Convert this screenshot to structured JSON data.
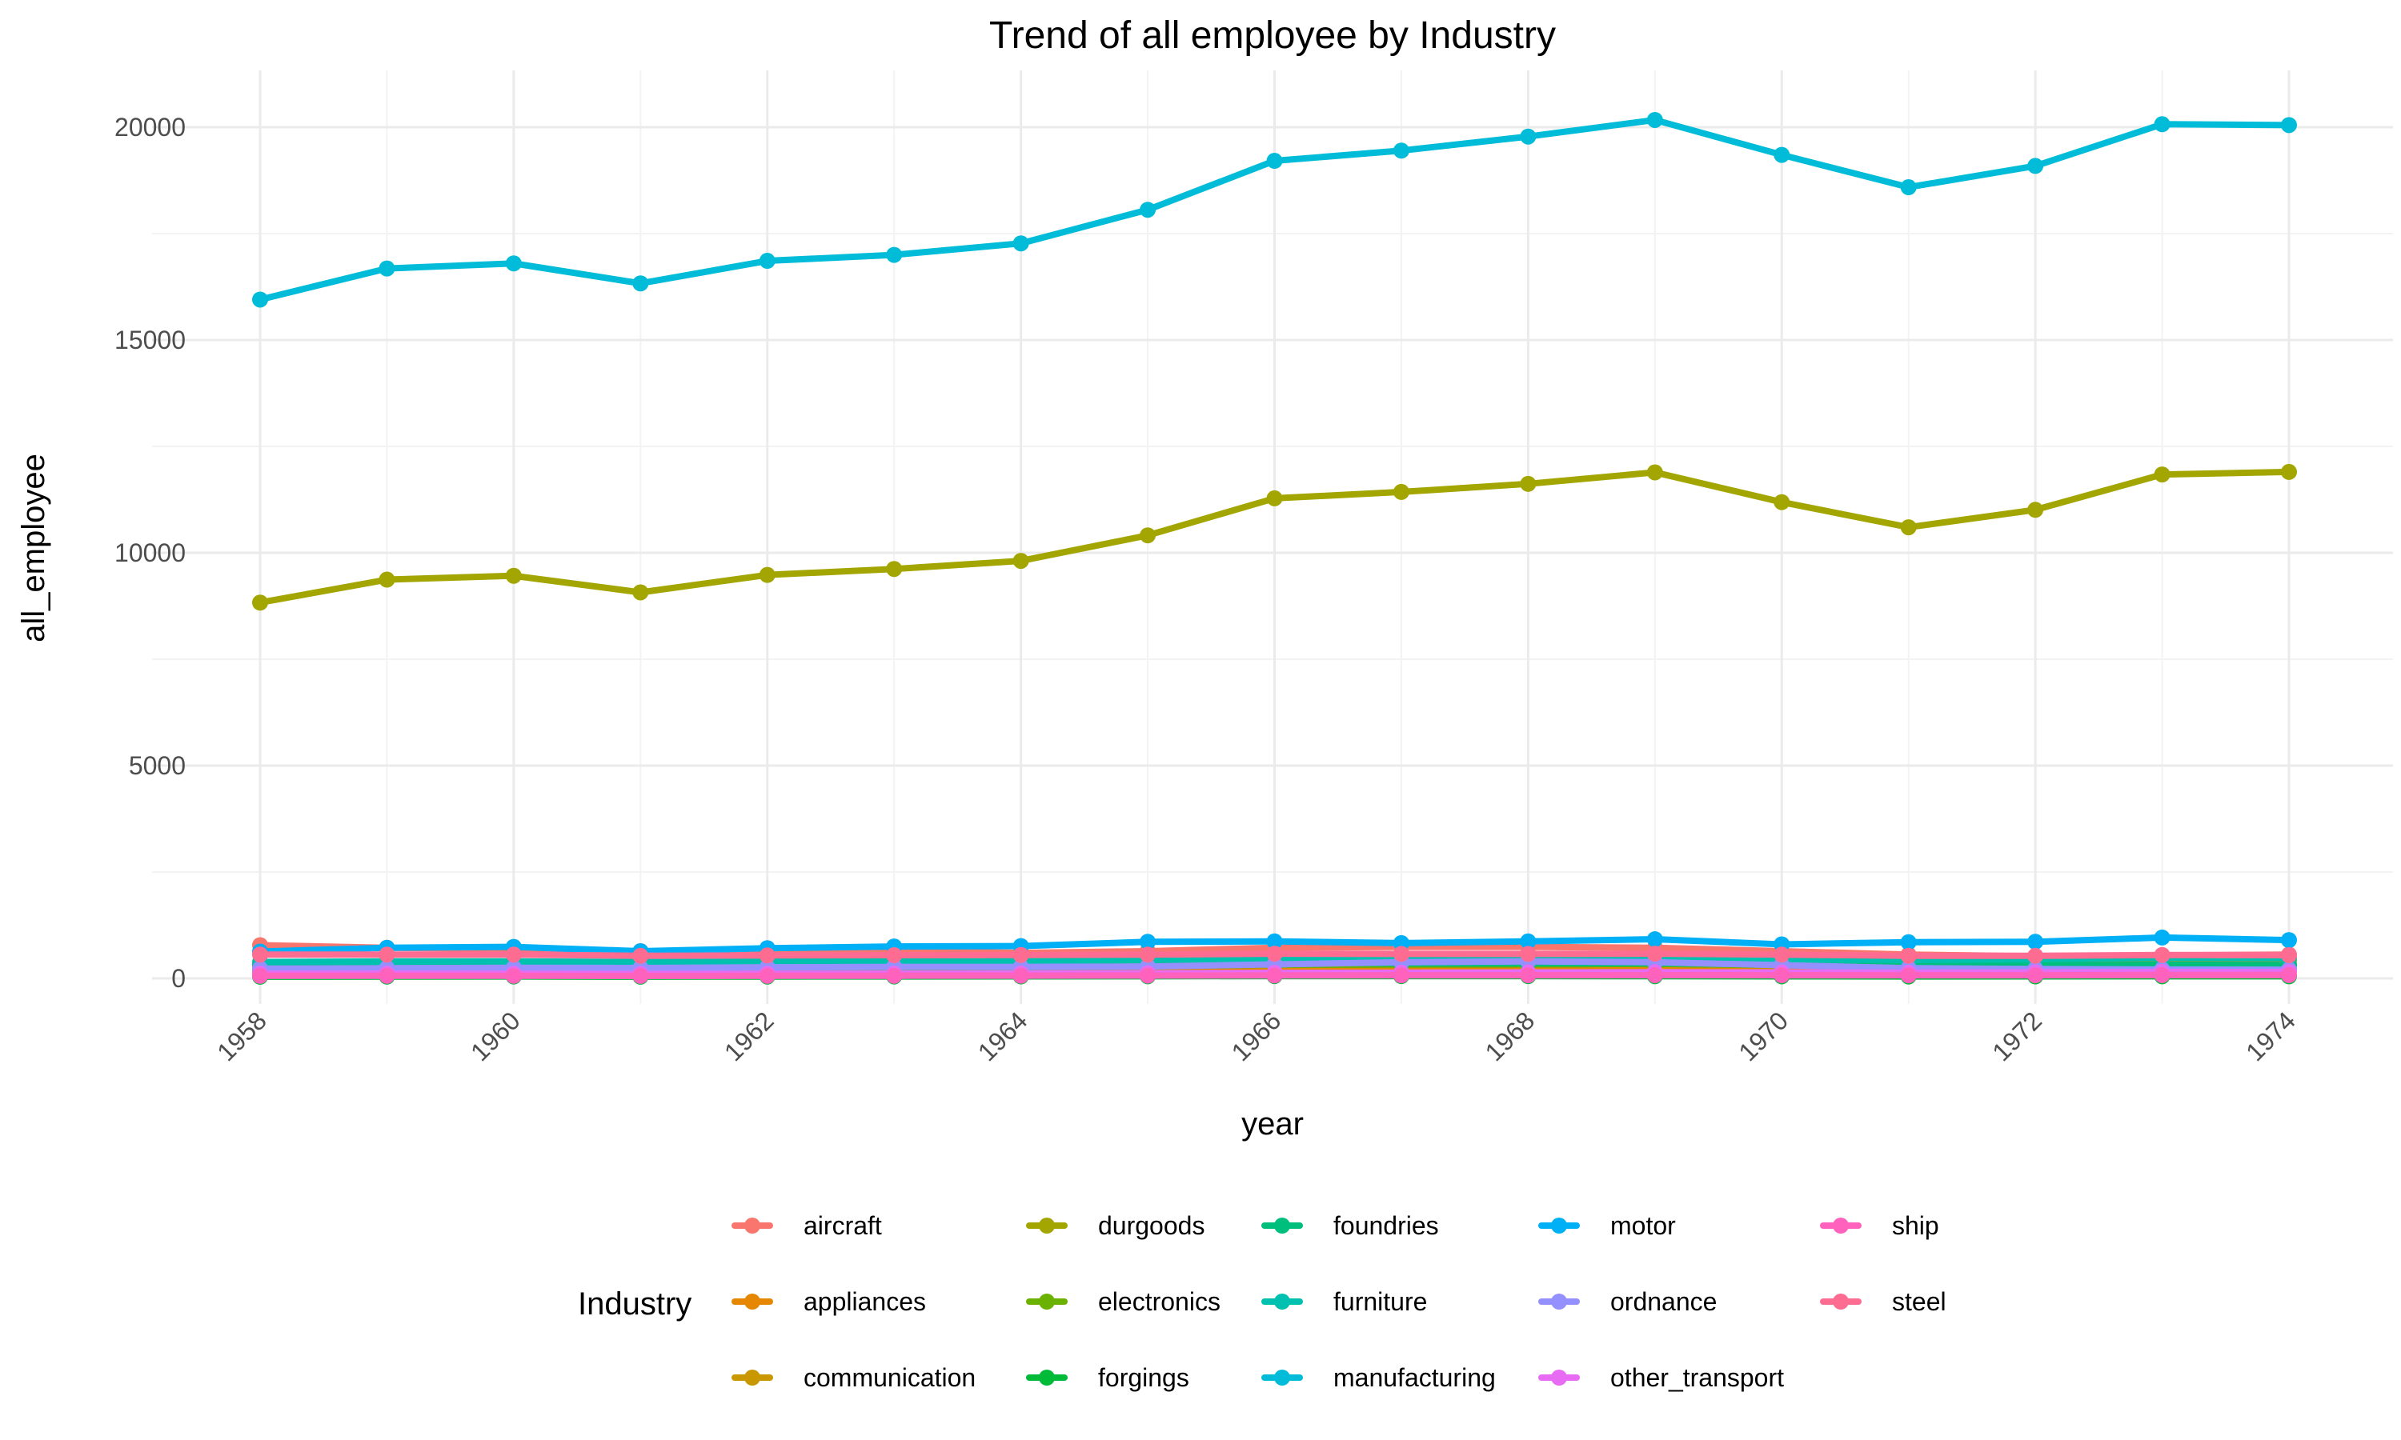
{
  "chart_data": {
    "type": "line",
    "title": "Trend of all employee by Industry",
    "xlabel": "year",
    "ylabel": "all_employee",
    "x": [
      1958,
      1959,
      1960,
      1961,
      1962,
      1963,
      1964,
      1965,
      1966,
      1967,
      1968,
      1969,
      1970,
      1971,
      1972,
      1973,
      1974
    ],
    "xlim": [
      1958,
      1974
    ],
    "ylim": [
      -400,
      21000
    ],
    "x_ticks": [
      "1958",
      "1960",
      "1962",
      "1964",
      "1966",
      "1968",
      "1970",
      "1972",
      "1974"
    ],
    "y_ticks": [
      "0",
      "5000",
      "10000",
      "15000",
      "20000"
    ],
    "grid": true,
    "legend_title": "Industry",
    "legend_position": "bottom",
    "series": [
      {
        "name": "aircraft",
        "color": "#F8766D",
        "values": [
          780,
          720,
          690,
          640,
          650,
          640,
          600,
          640,
          720,
          740,
          740,
          720,
          640,
          560,
          520,
          540,
          560
        ]
      },
      {
        "name": "appliances",
        "color": "#E58700",
        "values": [
          170,
          175,
          180,
          175,
          185,
          190,
          200,
          210,
          220,
          225,
          230,
          235,
          225,
          220,
          230,
          240,
          235
        ]
      },
      {
        "name": "communication",
        "color": "#C99800",
        "values": [
          290,
          300,
          310,
          300,
          315,
          320,
          330,
          360,
          400,
          410,
          420,
          430,
          410,
          390,
          400,
          420,
          415
        ]
      },
      {
        "name": "durgoods",
        "color": "#A3A500",
        "values": [
          8830,
          9370,
          9460,
          9070,
          9480,
          9620,
          9810,
          10410,
          11280,
          11430,
          11620,
          11890,
          11190,
          10600,
          11010,
          11840,
          11900
        ]
      },
      {
        "name": "electronics",
        "color": "#6BB100",
        "values": [
          200,
          220,
          235,
          230,
          250,
          255,
          260,
          280,
          320,
          325,
          330,
          340,
          310,
          280,
          290,
          310,
          305
        ]
      },
      {
        "name": "forgings",
        "color": "#00BA38",
        "values": [
          40,
          42,
          44,
          40,
          43,
          45,
          47,
          50,
          55,
          54,
          53,
          52,
          48,
          45,
          47,
          50,
          49
        ]
      },
      {
        "name": "foundries",
        "color": "#00BF7D",
        "values": [
          330,
          335,
          335,
          300,
          320,
          325,
          335,
          355,
          370,
          355,
          355,
          360,
          325,
          300,
          305,
          320,
          315
        ]
      },
      {
        "name": "furniture",
        "color": "#00C0AF",
        "values": [
          385,
          400,
          400,
          385,
          400,
          405,
          415,
          440,
          465,
          460,
          470,
          480,
          450,
          430,
          450,
          480,
          475
        ]
      },
      {
        "name": "manufacturing",
        "color": "#00BCD8",
        "values": [
          15950,
          16680,
          16800,
          16330,
          16860,
          17000,
          17270,
          18060,
          19210,
          19450,
          19780,
          20170,
          19350,
          18590,
          19090,
          20070,
          20050
        ]
      },
      {
        "name": "motor",
        "color": "#00B0F6",
        "values": [
          630,
          720,
          740,
          640,
          710,
          750,
          760,
          860,
          870,
          830,
          870,
          920,
          800,
          850,
          860,
          960,
          900
        ]
      },
      {
        "name": "ordnance",
        "color": "#9590FF",
        "values": [
          230,
          240,
          250,
          245,
          260,
          270,
          270,
          280,
          330,
          380,
          400,
          380,
          310,
          240,
          220,
          210,
          205
        ]
      },
      {
        "name": "other_transport",
        "color": "#E76BF3",
        "values": [
          110,
          112,
          110,
          105,
          110,
          112,
          115,
          120,
          130,
          135,
          140,
          145,
          140,
          135,
          140,
          150,
          148
        ]
      },
      {
        "name": "ship",
        "color": "#FF62BC",
        "values": [
          60,
          62,
          60,
          58,
          60,
          62,
          64,
          66,
          70,
          72,
          74,
          76,
          74,
          72,
          74,
          78,
          77
        ]
      },
      {
        "name": "steel",
        "color": "#FF6C91",
        "values": [
          560,
          560,
          560,
          530,
          540,
          545,
          550,
          560,
          580,
          575,
          575,
          580,
          560,
          530,
          530,
          550,
          545
        ]
      }
    ]
  }
}
